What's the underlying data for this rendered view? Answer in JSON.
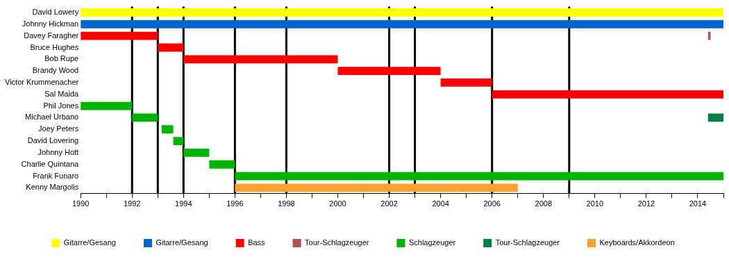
{
  "chart_data": {
    "type": "bar",
    "orientation": "horizontal",
    "categories": [
      "David Lowery",
      "Johnny Hickman",
      "Davey Faragher",
      "Bruce Hughes",
      "Bob Rupe",
      "Brandy Wood",
      "Victor Krummenacher",
      "Sal Maida",
      "Phil Jones",
      "Michael Urbano",
      "Joey Peters",
      "David Lovering",
      "Johnny Hott",
      "Charlie Quintana",
      "Frank Funaro",
      "Kenny Margolis"
    ],
    "series": [
      {
        "name": "Gitarre/Gesang",
        "color": "#ffff00",
        "values": [
          25,
          null,
          null,
          null,
          null,
          null,
          null,
          null,
          null,
          null,
          null,
          null,
          null,
          null,
          null,
          null
        ],
        "base": [
          1990,
          null,
          null,
          null,
          null,
          null,
          null,
          null,
          null,
          null,
          null,
          null,
          null,
          null,
          null,
          null
        ]
      },
      {
        "name": "Gitarre/Gesang",
        "color": "#0066cc",
        "values": [
          null,
          25,
          null,
          null,
          null,
          null,
          null,
          null,
          null,
          null,
          null,
          null,
          null,
          null,
          null,
          null
        ],
        "base": [
          null,
          1990,
          null,
          null,
          null,
          null,
          null,
          null,
          null,
          null,
          null,
          null,
          null,
          null,
          null,
          null
        ]
      },
      {
        "name": "Bass",
        "color": "#ff0000",
        "values": [
          null,
          null,
          3,
          1,
          6,
          4,
          2,
          9,
          null,
          null,
          null,
          null,
          null,
          null,
          null,
          null
        ],
        "base": [
          null,
          null,
          1990,
          1993,
          1994,
          2000,
          2004,
          2006,
          null,
          null,
          null,
          null,
          null,
          null,
          null,
          null
        ]
      },
      {
        "name": "Tour-Schlagzeuger",
        "color": "#b05050",
        "values": [
          null,
          null,
          0.1,
          null,
          null,
          null,
          null,
          null,
          null,
          null,
          null,
          null,
          null,
          null,
          null,
          null
        ],
        "base": [
          null,
          null,
          2014.4,
          null,
          null,
          null,
          null,
          null,
          null,
          null,
          null,
          null,
          null,
          null,
          null,
          null
        ]
      },
      {
        "name": "Schlagzeuger",
        "color": "#00b300",
        "values": [
          null,
          null,
          null,
          null,
          null,
          null,
          null,
          null,
          2,
          1,
          0.45,
          0.4,
          1,
          1,
          19,
          null
        ],
        "base": [
          null,
          null,
          null,
          null,
          null,
          null,
          null,
          null,
          1990,
          1992,
          1993.15,
          1993.6,
          1994,
          1995,
          1996,
          null
        ]
      },
      {
        "name": "Tour-Schlagzeuger",
        "color": "#008040",
        "values": [
          null,
          null,
          null,
          null,
          null,
          null,
          null,
          null,
          null,
          0.6,
          null,
          null,
          null,
          null,
          null,
          null
        ],
        "base": [
          null,
          null,
          null,
          null,
          null,
          null,
          null,
          null,
          null,
          2014.4,
          null,
          null,
          null,
          null,
          null,
          null
        ]
      },
      {
        "name": "Keyboards/Akkordeon",
        "color": "#ffa030",
        "values": [
          null,
          null,
          null,
          null,
          null,
          null,
          null,
          null,
          null,
          null,
          null,
          null,
          null,
          null,
          null,
          11
        ],
        "base": [
          null,
          null,
          null,
          null,
          null,
          null,
          null,
          null,
          null,
          null,
          null,
          null,
          null,
          null,
          null,
          1996
        ]
      }
    ],
    "xlim": [
      1990,
      2015
    ],
    "xticks": [
      1990,
      {
        "value": 1991,
        "label": null
      },
      1992,
      {
        "value": 1993,
        "label": null
      },
      1994,
      {
        "value": 1995,
        "label": null
      },
      1996,
      {
        "value": 1997,
        "label": null
      },
      1998,
      {
        "value": 1999,
        "label": null
      },
      2000,
      {
        "value": 2001,
        "label": null
      },
      2002,
      {
        "value": 2003,
        "label": null
      },
      2004,
      {
        "value": 2005,
        "label": null
      },
      2006,
      {
        "value": 2007,
        "label": null
      },
      2008,
      {
        "value": 2009,
        "label": null
      },
      2010,
      {
        "value": 2011,
        "label": null
      },
      2012,
      {
        "value": 2013,
        "label": null
      },
      2014,
      {
        "value": 2015,
        "label": null
      }
    ],
    "ref_lines": [
      {
        "axis": "x",
        "value": 1992,
        "color": "#000000"
      },
      {
        "axis": "x",
        "value": 1993,
        "color": "#000000"
      },
      {
        "axis": "x",
        "value": 1994,
        "color": "#000000"
      },
      {
        "axis": "x",
        "value": 1996,
        "color": "#000000"
      },
      {
        "axis": "x",
        "value": 1998,
        "color": "#000000"
      },
      {
        "axis": "x",
        "value": 2002,
        "color": "#000000"
      },
      {
        "axis": "x",
        "value": 2003,
        "color": "#000000"
      },
      {
        "axis": "x",
        "value": 2006,
        "color": "#000000"
      },
      {
        "axis": "x",
        "value": 2009,
        "color": "#000000"
      }
    ],
    "grid": false,
    "legend": "bottom"
  }
}
